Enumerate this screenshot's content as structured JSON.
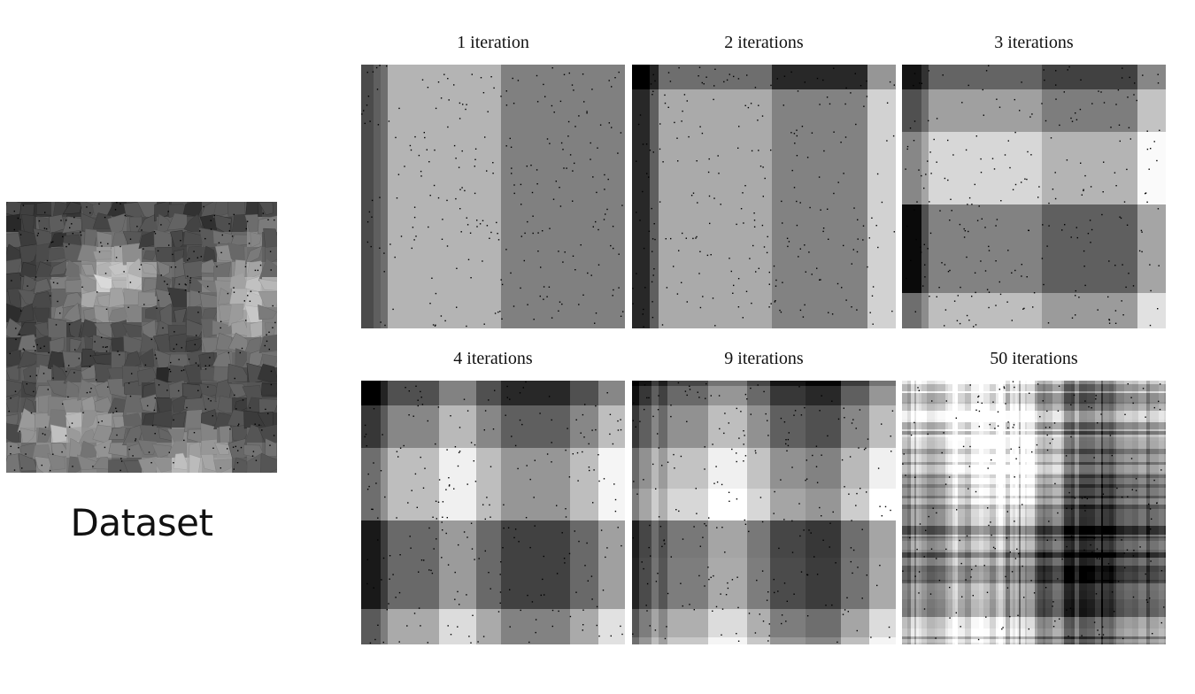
{
  "dataset": {
    "label": "Dataset"
  },
  "panels": [
    {
      "title": "1 iteration"
    },
    {
      "title": "2 iterations"
    },
    {
      "title": "3 iterations"
    },
    {
      "title": "4 iterations"
    },
    {
      "title": "9 iterations"
    },
    {
      "title": "50 iterations"
    }
  ]
}
